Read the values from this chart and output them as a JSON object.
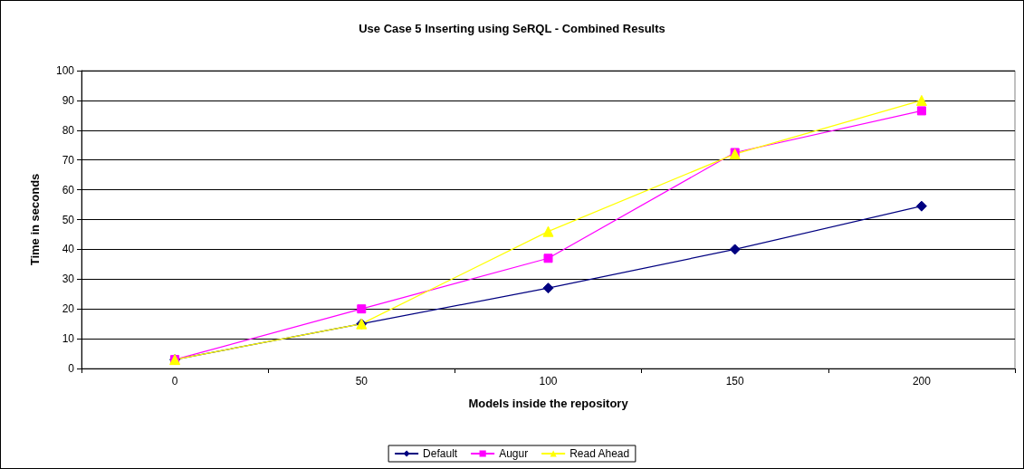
{
  "chart_data": {
    "type": "line",
    "title": "Use Case 5 Inserting using SeRQL - Combined Results",
    "xlabel": "Models inside the repository",
    "ylabel": "Time in seconds",
    "categories": [
      "0",
      "50",
      "100",
      "150",
      "200"
    ],
    "series": [
      {
        "name": "Default",
        "color": "#000080",
        "marker": "diamond",
        "values": [
          3,
          15,
          27,
          40,
          54.5
        ]
      },
      {
        "name": "Augur",
        "color": "#ff00ff",
        "marker": "square",
        "values": [
          3,
          20,
          37,
          72.5,
          86.5
        ]
      },
      {
        "name": "Read Ahead",
        "color": "#ffff00",
        "marker": "triangle",
        "values": [
          3,
          15,
          46,
          72,
          90
        ]
      }
    ],
    "ylim": [
      0,
      100
    ],
    "yticks": [
      0,
      10,
      20,
      30,
      40,
      50,
      60,
      70,
      80,
      90,
      100
    ],
    "grid": "y",
    "legend": "bottom",
    "line_style": "solid"
  }
}
